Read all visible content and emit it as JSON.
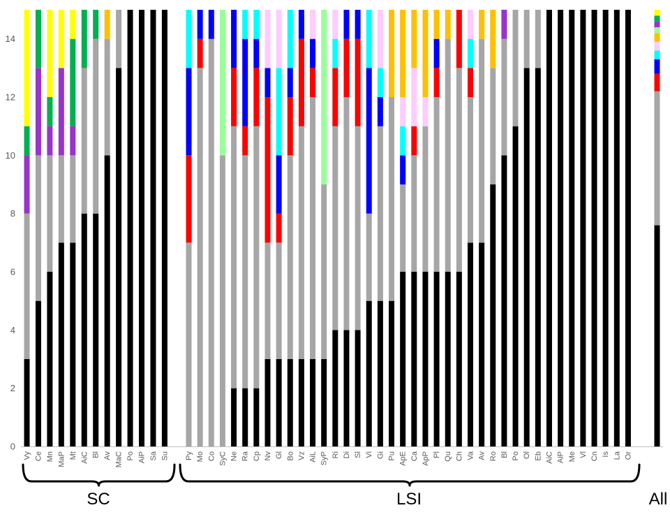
{
  "chart_data": {
    "type": "bar",
    "stacked": true,
    "grid": false,
    "legend": "none",
    "title": "",
    "xlabel": "",
    "ylabel": "",
    "ylim": [
      0,
      15
    ],
    "yticks": [
      0,
      2,
      4,
      6,
      8,
      10,
      12,
      14
    ],
    "series_colors": [
      "#000000",
      "#a6a6a6",
      "#ff0000",
      "#0000ff",
      "#00ffff",
      "#ffccff",
      "#ffc000",
      "#99ff99",
      "#9933cc",
      "#00b050",
      "#ffff00"
    ],
    "groups": [
      {
        "label": "SC",
        "bars": [
          {
            "category": "Vy",
            "values": [
              3,
              5,
              0,
              0,
              0,
              0,
              0,
              0,
              2,
              1,
              4
            ]
          },
          {
            "category": "Ce",
            "values": [
              5,
              5,
              0,
              0,
              0,
              0,
              0,
              0,
              3,
              2,
              0
            ]
          },
          {
            "category": "Mn",
            "values": [
              6,
              4,
              0,
              0,
              0,
              0,
              0,
              0,
              1,
              1,
              3
            ]
          },
          {
            "category": "MaP",
            "values": [
              7,
              3,
              0,
              0,
              0,
              0,
              0,
              0,
              3,
              0,
              2
            ]
          },
          {
            "category": "Mt",
            "values": [
              7,
              3,
              0,
              0,
              0,
              0,
              0,
              0,
              1,
              3,
              1
            ]
          },
          {
            "category": "AiC",
            "values": [
              8,
              5,
              0,
              0,
              0,
              0,
              0,
              0,
              0,
              2,
              0
            ]
          },
          {
            "category": "Bl",
            "values": [
              8,
              6,
              0,
              0,
              0,
              0,
              0,
              0,
              0,
              1,
              0
            ]
          },
          {
            "category": "Av",
            "values": [
              10,
              4,
              0,
              0,
              0,
              0,
              1,
              0,
              0,
              0,
              0
            ]
          },
          {
            "category": "MaC",
            "values": [
              13,
              2,
              0,
              0,
              0,
              0,
              0,
              0,
              0,
              0,
              0
            ]
          },
          {
            "category": "Po",
            "values": [
              15,
              0,
              0,
              0,
              0,
              0,
              0,
              0,
              0,
              0,
              0
            ]
          },
          {
            "category": "AiP",
            "values": [
              15,
              0,
              0,
              0,
              0,
              0,
              0,
              0,
              0,
              0,
              0
            ]
          },
          {
            "category": "Sa",
            "values": [
              15,
              0,
              0,
              0,
              0,
              0,
              0,
              0,
              0,
              0,
              0
            ]
          },
          {
            "category": "Su",
            "values": [
              15,
              0,
              0,
              0,
              0,
              0,
              0,
              0,
              0,
              0,
              0
            ]
          }
        ]
      },
      {
        "label": "LSI",
        "bars": [
          {
            "category": "Py",
            "values": [
              0,
              7,
              3,
              3,
              2,
              0,
              0,
              0,
              0,
              0,
              0
            ]
          },
          {
            "category": "Mo",
            "values": [
              0,
              13,
              1,
              1,
              0,
              0,
              0,
              0,
              0,
              0,
              0
            ]
          },
          {
            "category": "Co",
            "values": [
              0,
              14,
              0,
              1,
              0,
              0,
              0,
              0,
              0,
              0,
              0
            ]
          },
          {
            "category": "SyC",
            "values": [
              0,
              10,
              0,
              0,
              0,
              0,
              0,
              5,
              0,
              0,
              0
            ]
          },
          {
            "category": "Ne",
            "values": [
              2,
              9,
              2,
              2,
              0,
              0,
              0,
              0,
              0,
              0,
              0
            ]
          },
          {
            "category": "Ra",
            "values": [
              2,
              8,
              1,
              3,
              1,
              0,
              0,
              0,
              0,
              0,
              0
            ]
          },
          {
            "category": "Cp",
            "values": [
              2,
              9,
              2,
              1,
              1,
              0,
              0,
              0,
              0,
              0,
              0
            ]
          },
          {
            "category": "Nv",
            "values": [
              3,
              4,
              5,
              1,
              0,
              2,
              0,
              0,
              0,
              0,
              0
            ]
          },
          {
            "category": "Gl",
            "values": [
              3,
              4,
              1,
              2,
              3,
              2,
              0,
              0,
              0,
              0,
              0
            ]
          },
          {
            "category": "Bo",
            "values": [
              3,
              7,
              2,
              1,
              2,
              0,
              0,
              0,
              0,
              0,
              0
            ]
          },
          {
            "category": "Vz",
            "values": [
              3,
              8,
              3,
              1,
              0,
              0,
              0,
              0,
              0,
              0,
              0
            ]
          },
          {
            "category": "AiL",
            "values": [
              3,
              9,
              1,
              1,
              0,
              1,
              0,
              0,
              0,
              0,
              0
            ]
          },
          {
            "category": "SyP",
            "values": [
              3,
              6,
              0,
              0,
              0,
              0,
              0,
              6,
              0,
              0,
              0
            ]
          },
          {
            "category": "Ri",
            "values": [
              4,
              7,
              2,
              0,
              1,
              1,
              0,
              0,
              0,
              0,
              0
            ]
          },
          {
            "category": "Di",
            "values": [
              4,
              8,
              2,
              1,
              0,
              0,
              0,
              0,
              0,
              0,
              0
            ]
          },
          {
            "category": "Sl",
            "values": [
              4,
              7,
              3,
              1,
              0,
              0,
              0,
              0,
              0,
              0,
              0
            ]
          },
          {
            "category": "Vi",
            "values": [
              5,
              3,
              0,
              5,
              2,
              0,
              0,
              0,
              0,
              0,
              0
            ]
          },
          {
            "category": "Gi",
            "values": [
              5,
              6,
              0,
              1,
              1,
              2,
              0,
              0,
              0,
              0,
              0
            ]
          },
          {
            "category": "Pu",
            "values": [
              5,
              7,
              0,
              0,
              0,
              0,
              3,
              0,
              0,
              0,
              0
            ]
          },
          {
            "category": "ApE",
            "values": [
              6,
              3,
              0,
              1,
              1,
              1,
              3,
              0,
              0,
              0,
              0
            ]
          },
          {
            "category": "Ca",
            "values": [
              6,
              4,
              1,
              0,
              0,
              2,
              2,
              0,
              0,
              0,
              0
            ]
          },
          {
            "category": "ApP",
            "values": [
              6,
              5,
              0,
              0,
              0,
              1,
              3,
              0,
              0,
              0,
              0
            ]
          },
          {
            "category": "Pl",
            "values": [
              6,
              6,
              1,
              1,
              0,
              0,
              1,
              0,
              0,
              0,
              0
            ]
          },
          {
            "category": "Qu",
            "values": [
              6,
              8,
              0,
              0,
              0,
              0,
              1,
              0,
              0,
              0,
              0
            ]
          },
          {
            "category": "Ch",
            "values": [
              6,
              7,
              2,
              0,
              0,
              0,
              0,
              0,
              0,
              0,
              0
            ]
          },
          {
            "category": "Va",
            "values": [
              7,
              5,
              1,
              0,
              1,
              1,
              0,
              0,
              0,
              0,
              0
            ]
          },
          {
            "category": "Av",
            "values": [
              7,
              7,
              0,
              0,
              0,
              0,
              1,
              0,
              0,
              0,
              0
            ]
          },
          {
            "category": "Ro",
            "values": [
              9,
              4,
              0,
              0,
              0,
              0,
              2,
              0,
              0,
              0,
              0
            ]
          },
          {
            "category": "Bl",
            "values": [
              10,
              4,
              0,
              0,
              0,
              0,
              0,
              0,
              1,
              0,
              0
            ]
          },
          {
            "category": "Po",
            "values": [
              11,
              4,
              0,
              0,
              0,
              0,
              0,
              0,
              0,
              0,
              0
            ]
          },
          {
            "category": "Ol",
            "values": [
              13,
              2,
              0,
              0,
              0,
              0,
              0,
              0,
              0,
              0,
              0
            ]
          },
          {
            "category": "Eb",
            "values": [
              13,
              2,
              0,
              0,
              0,
              0,
              0,
              0,
              0,
              0,
              0
            ]
          },
          {
            "category": "AiC",
            "values": [
              15,
              0,
              0,
              0,
              0,
              0,
              0,
              0,
              0,
              0,
              0
            ]
          },
          {
            "category": "AiP",
            "values": [
              15,
              0,
              0,
              0,
              0,
              0,
              0,
              0,
              0,
              0,
              0
            ]
          },
          {
            "category": "Me",
            "values": [
              15,
              0,
              0,
              0,
              0,
              0,
              0,
              0,
              0,
              0,
              0
            ]
          },
          {
            "category": "Vl",
            "values": [
              15,
              0,
              0,
              0,
              0,
              0,
              0,
              0,
              0,
              0,
              0
            ]
          },
          {
            "category": "Cn",
            "values": [
              15,
              0,
              0,
              0,
              0,
              0,
              0,
              0,
              0,
              0,
              0
            ]
          },
          {
            "category": "Is",
            "values": [
              15,
              0,
              0,
              0,
              0,
              0,
              0,
              0,
              0,
              0,
              0
            ]
          },
          {
            "category": "La",
            "values": [
              15,
              0,
              0,
              0,
              0,
              0,
              0,
              0,
              0,
              0,
              0
            ]
          },
          {
            "category": "Or",
            "values": [
              15,
              0,
              0,
              0,
              0,
              0,
              0,
              0,
              0,
              0,
              0
            ]
          }
        ]
      },
      {
        "label": "All",
        "bars": [
          {
            "category": "",
            "values": [
              7.6,
              4.6,
              0.6,
              0.5,
              0.3,
              0.3,
              0.3,
              0.2,
              0.2,
              0.2,
              0.2
            ]
          }
        ]
      }
    ]
  }
}
